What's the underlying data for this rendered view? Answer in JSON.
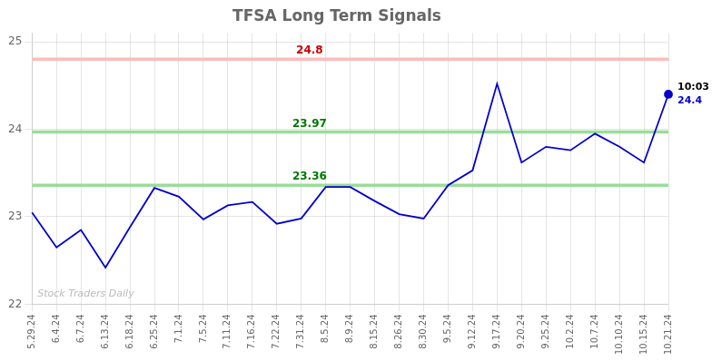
{
  "chart_data": {
    "type": "line",
    "title": "TFSA Long Term Signals",
    "categories": [
      "5.29.24",
      "6.4.24",
      "6.7.24",
      "6.13.24",
      "6.18.24",
      "6.25.24",
      "7.1.24",
      "7.5.24",
      "7.11.24",
      "7.16.24",
      "7.22.24",
      "7.31.24",
      "8.5.24",
      "8.9.24",
      "8.15.24",
      "8.26.24",
      "8.30.24",
      "9.5.24",
      "9.12.24",
      "9.17.24",
      "9.20.24",
      "9.25.24",
      "10.2.24",
      "10.7.24",
      "10.10.24",
      "10.15.24",
      "10.21.24"
    ],
    "values": [
      23.05,
      22.65,
      22.85,
      22.42,
      22.88,
      23.33,
      23.23,
      22.97,
      23.13,
      23.17,
      22.92,
      22.98,
      23.34,
      23.34,
      23.18,
      23.03,
      22.98,
      23.36,
      23.53,
      24.52,
      23.62,
      23.8,
      23.76,
      23.95,
      23.8,
      23.62,
      24.4
    ],
    "color": "#0000cc",
    "ylim": [
      22.0,
      25.1
    ],
    "yticks": [
      22,
      23,
      24,
      25
    ],
    "grid": true,
    "reference_lines": [
      {
        "value": 24.8,
        "label": "24.8",
        "color": "#ffbbbb",
        "label_color": "#cc0000"
      },
      {
        "value": 23.97,
        "label": "23.97",
        "color": "#99dd99",
        "label_color": "#007700"
      },
      {
        "value": 23.36,
        "label": "23.36",
        "color": "#99dd99",
        "label_color": "#007700"
      }
    ],
    "last_point_annotation": {
      "time": "10:03",
      "value": "24.4"
    },
    "watermark": "Stock Traders Daily"
  }
}
